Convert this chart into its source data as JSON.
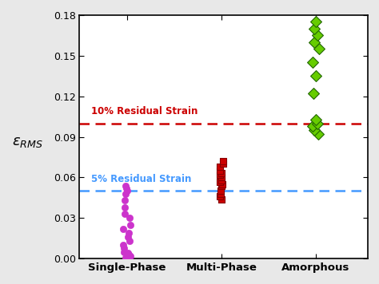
{
  "single_phase": [
    0.001,
    0.002,
    0.003,
    0.004,
    0.005,
    0.008,
    0.01,
    0.013,
    0.016,
    0.019,
    0.022,
    0.025,
    0.03,
    0.033,
    0.038,
    0.043,
    0.048,
    0.05,
    0.052,
    0.054
  ],
  "multi_phase": [
    0.044,
    0.046,
    0.048,
    0.05,
    0.054,
    0.055,
    0.057,
    0.058,
    0.06,
    0.062,
    0.063,
    0.065,
    0.068,
    0.07,
    0.072
  ],
  "amorphous": [
    0.092,
    0.095,
    0.098,
    0.1,
    0.103,
    0.122,
    0.135,
    0.145,
    0.155,
    0.16,
    0.165,
    0.17,
    0.175
  ],
  "line_10pct": 0.1,
  "line_5pct": 0.05,
  "label_10pct": "10% Residual Strain",
  "label_5pct": "5% Residual Strain",
  "xlabel_labels": [
    "Single-Phase",
    "Multi-Phase",
    "Amorphous"
  ],
  "ylabel": "$\\varepsilon_{RMS}$",
  "ylim": [
    0.0,
    0.18
  ],
  "yticks": [
    0.0,
    0.03,
    0.06,
    0.09,
    0.12,
    0.15,
    0.18
  ],
  "color_single": "#CC33CC",
  "color_multi": "#CC0000",
  "color_amorphous": "#66CC00",
  "color_line_red": "#CC0000",
  "color_line_blue": "#4499FF",
  "marker_size_circle": 35,
  "marker_size_square": 35,
  "marker_size_diamond": 50,
  "bg_color": "#e8e8e8",
  "plot_bg": "#ffffff"
}
